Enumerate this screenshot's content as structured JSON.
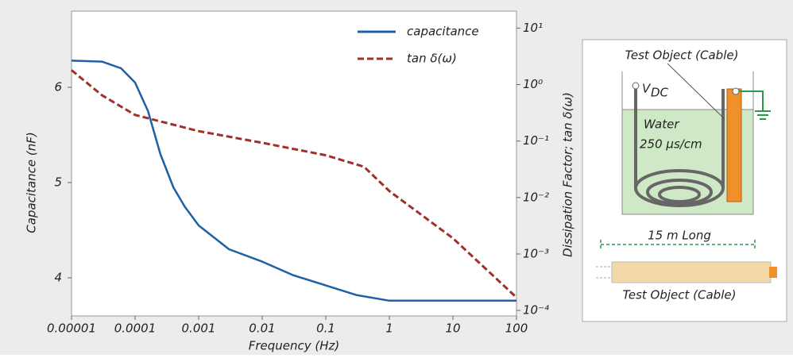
{
  "chart_data": {
    "type": "line",
    "xlabel": "Frequency (Hz)",
    "ylabel": "Capacitance (nF)",
    "y2label": "Dissipation Factor; tan δ(ω)",
    "xscale": "log",
    "y2scale": "log",
    "xlim": [
      1e-05,
      100
    ],
    "xticks": [
      1e-05,
      0.0001,
      0.001,
      0.01,
      0.1,
      1,
      10,
      100
    ],
    "ylim": [
      3.6,
      6.8
    ],
    "yticks": [
      4,
      5,
      6
    ],
    "y2lim": [
      8e-05,
      20
    ],
    "y2ticks": [
      {
        "value": 10,
        "label": "10¹"
      },
      {
        "value": 1,
        "label": "10⁰"
      },
      {
        "value": 0.1,
        "label": "10⁻¹"
      },
      {
        "value": 0.01,
        "label": "10⁻²"
      },
      {
        "value": 0.001,
        "label": "10⁻³"
      },
      {
        "value": 0.0001,
        "label": "10⁻⁴"
      }
    ],
    "legend": "upper right",
    "series": [
      {
        "name": "capacitance",
        "color": "#1f5fa8",
        "style": "solid",
        "x": [
          1e-05,
          3e-05,
          6e-05,
          0.0001,
          0.00016,
          0.00025,
          0.0004,
          0.0006,
          0.001,
          0.003,
          0.01,
          0.03,
          0.1,
          0.3,
          1,
          10,
          100
        ],
        "values": [
          6.28,
          6.27,
          6.2,
          6.05,
          5.75,
          5.3,
          4.95,
          4.75,
          4.55,
          4.3,
          4.17,
          4.03,
          3.92,
          3.82,
          3.76,
          3.76,
          3.76
        ]
      },
      {
        "name": "tan δ(ω)",
        "color": "#a0302a",
        "style": "dashed",
        "axis": "y2",
        "x": [
          1e-05,
          3e-05,
          0.0001,
          0.001,
          0.01,
          0.1,
          0.4,
          1,
          10,
          100
        ],
        "values": [
          1.8,
          0.65,
          0.29,
          0.15,
          0.093,
          0.056,
          0.035,
          0.013,
          0.0019,
          0.00017
        ]
      }
    ]
  },
  "diagram": {
    "top_label": "Test Object (Cable)",
    "vdc": {
      "main": "V",
      "sub": "DC"
    },
    "water": "Water",
    "conductivity": "250 μs/cm",
    "length": "15 m Long",
    "bottom_label": "Test Object (Cable)"
  }
}
